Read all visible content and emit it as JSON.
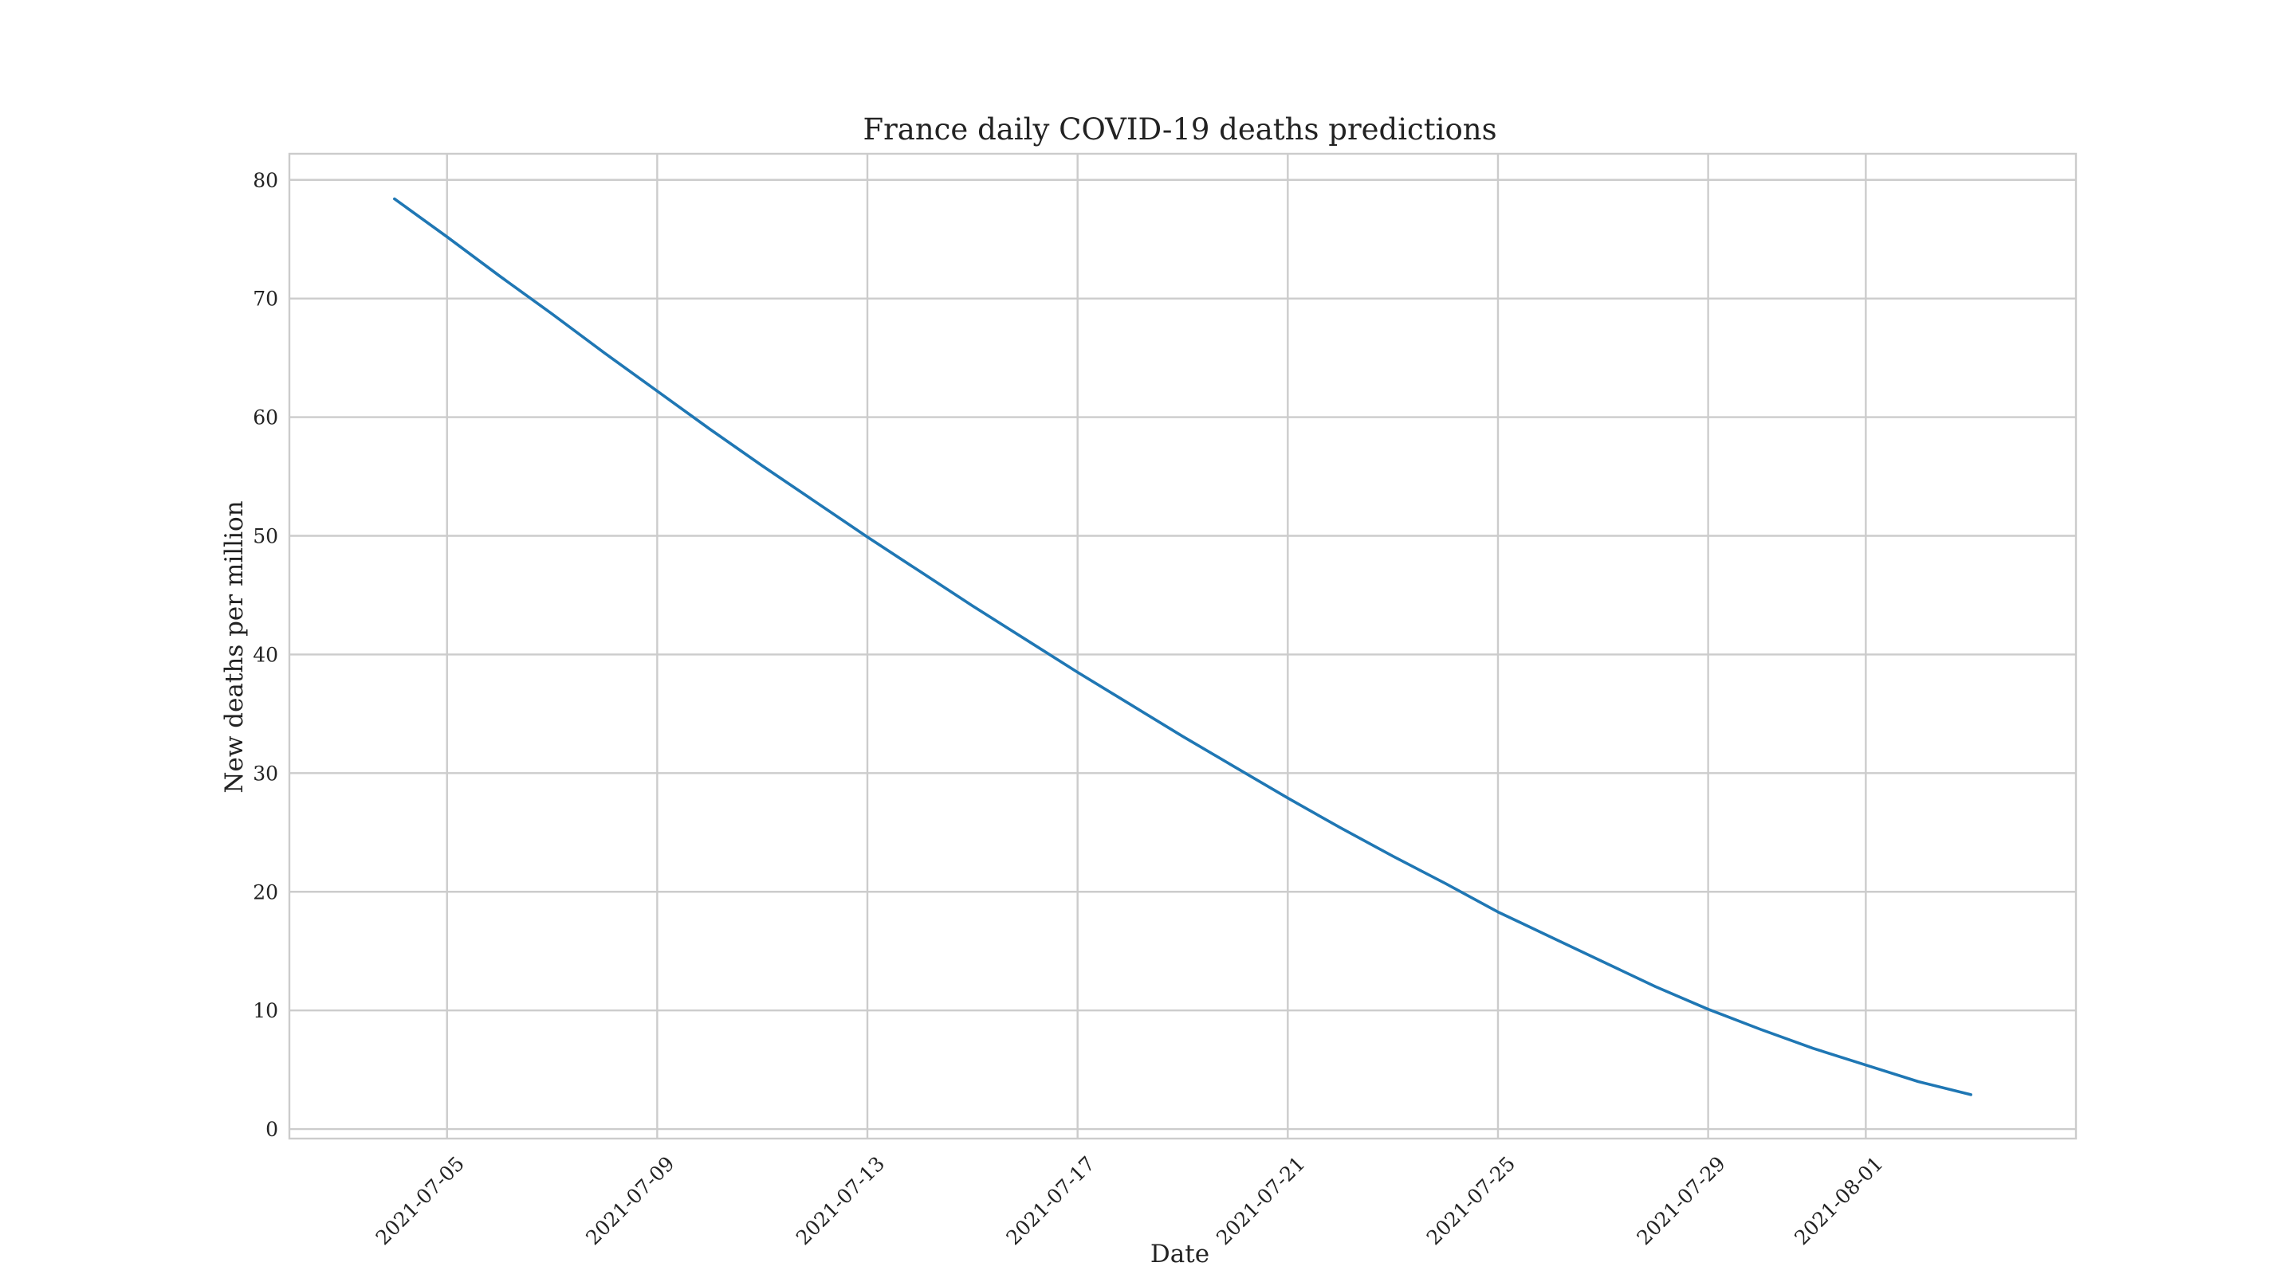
{
  "chart_data": {
    "type": "line",
    "title": "France daily COVID-19 deaths predictions",
    "xlabel": "Date",
    "ylabel": "New deaths per million",
    "x_type": "date",
    "x_range": [
      "2021-07-02",
      "2021-08-05"
    ],
    "ylim": [
      -0.8,
      82.2
    ],
    "x_ticks": [
      "2021-07-05",
      "2021-07-09",
      "2021-07-13",
      "2021-07-17",
      "2021-07-21",
      "2021-07-25",
      "2021-07-29",
      "2021-08-01"
    ],
    "y_ticks": [
      0,
      10,
      20,
      30,
      40,
      50,
      60,
      70,
      80
    ],
    "grid": true,
    "legend": "none",
    "x_tick_rotation_deg": 45,
    "colors": {
      "series": "#1f77b4",
      "grid": "#cccccc"
    },
    "series": [
      {
        "x": [
          "2021-07-04",
          "2021-07-05",
          "2021-07-06",
          "2021-07-07",
          "2021-07-08",
          "2021-07-09",
          "2021-07-10",
          "2021-07-11",
          "2021-07-12",
          "2021-07-13",
          "2021-07-14",
          "2021-07-15",
          "2021-07-16",
          "2021-07-17",
          "2021-07-18",
          "2021-07-19",
          "2021-07-20",
          "2021-07-21",
          "2021-07-22",
          "2021-07-23",
          "2021-07-24",
          "2021-07-25",
          "2021-07-26",
          "2021-07-27",
          "2021-07-28",
          "2021-07-29",
          "2021-07-30",
          "2021-07-31",
          "2021-08-01",
          "2021-08-02",
          "2021-08-03"
        ],
        "values": [
          78.4,
          75.2,
          71.9,
          68.7,
          65.4,
          62.2,
          59.0,
          55.9,
          52.9,
          49.9,
          47.0,
          44.1,
          41.3,
          38.5,
          35.8,
          33.1,
          30.5,
          27.9,
          25.4,
          23.0,
          20.7,
          18.3,
          16.2,
          14.1,
          12.0,
          10.1,
          8.4,
          6.8,
          5.4,
          4.0,
          2.9
        ]
      }
    ]
  }
}
